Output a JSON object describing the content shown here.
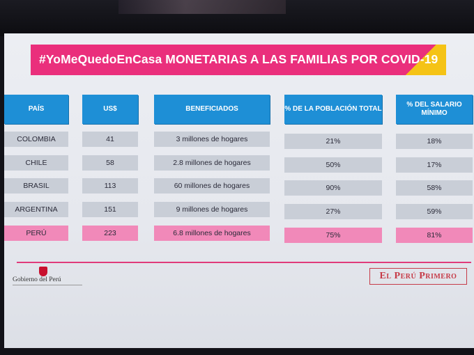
{
  "banner": {
    "title": "#YoMeQuedoEnCasa MONETARIAS A LAS FAMILIAS POR COVID-19"
  },
  "table": {
    "headers": [
      "PAÍS",
      "US$",
      "BENEFICIADOS",
      "% DE LA POBLACIÓN TOTAL",
      "% DEL SALARIO MÍNIMO"
    ],
    "rows": [
      [
        "COLOMBIA",
        "41",
        "3 millones de hogares",
        "21%",
        "18%"
      ],
      [
        "CHILE",
        "58",
        "2.8 millones de hogares",
        "50%",
        "17%"
      ],
      [
        "BRASIL",
        "113",
        "60 millones de hogares",
        "90%",
        "58%"
      ],
      [
        "ARGENTINA",
        "151",
        "9 millones de hogares",
        "27%",
        "59%"
      ],
      [
        "PERÚ",
        "223",
        "6.8 millones de hogares",
        "75%",
        "81%"
      ]
    ],
    "highlight_row": 4,
    "colors": {
      "header": "#1e8fd6",
      "cell": "#c9ced7",
      "highlight": "#f189b9",
      "banner": "#ea2f7c",
      "banner_accent": "#f5c316"
    }
  },
  "footer": {
    "left_logo_text": "Gobierno del Perú",
    "left_logo_icon": "coat-of-arms-icon",
    "right_logo_text": "El Perú Primero"
  }
}
